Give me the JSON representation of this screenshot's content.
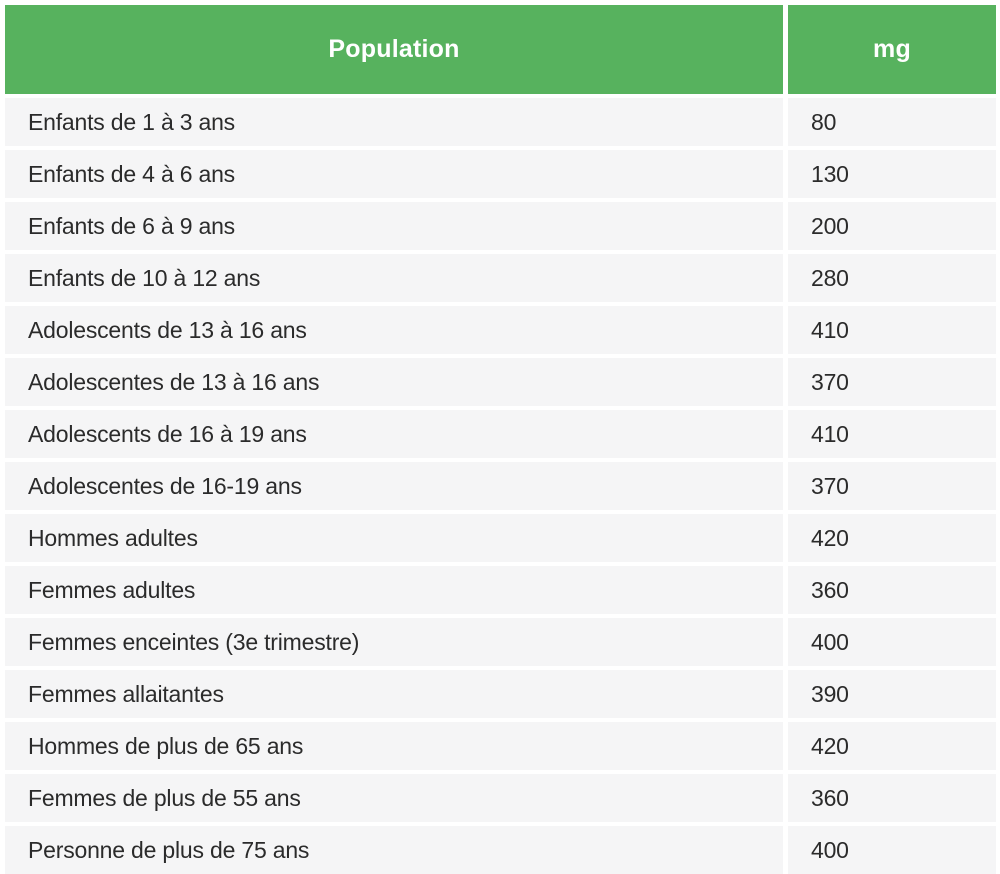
{
  "colors": {
    "header_bg": "#57b25e",
    "header_text": "#ffffff",
    "row_bg": "#f5f5f6",
    "cell_text": "#2b2b2b",
    "separator": "#ffffff"
  },
  "table": {
    "columns": [
      {
        "label": "Population"
      },
      {
        "label": "mg"
      }
    ],
    "rows": [
      {
        "population": "Enfants de 1 à 3 ans",
        "mg": "80"
      },
      {
        "population": "Enfants de 4 à 6 ans",
        "mg": "130"
      },
      {
        "population": "Enfants de 6 à 9 ans",
        "mg": "200"
      },
      {
        "population": "Enfants de 10 à 12 ans",
        "mg": "280"
      },
      {
        "population": "Adolescents de 13 à 16 ans",
        "mg": "410"
      },
      {
        "population": "Adolescentes de 13 à 16 ans",
        "mg": "370"
      },
      {
        "population": "Adolescents de 16 à 19 ans",
        "mg": "410"
      },
      {
        "population": "Adolescentes de 16-19 ans",
        "mg": "370"
      },
      {
        "population": "Hommes adultes",
        "mg": "420"
      },
      {
        "population": "Femmes adultes",
        "mg": "360"
      },
      {
        "population": "Femmes enceintes (3e trimestre)",
        "mg": "400"
      },
      {
        "population": "Femmes allaitantes",
        "mg": "390"
      },
      {
        "population": "Hommes de plus de 65 ans",
        "mg": "420"
      },
      {
        "population": "Femmes de plus de 55 ans",
        "mg": "360"
      },
      {
        "population": "Personne de plus de 75 ans",
        "mg": "400"
      }
    ]
  },
  "chart_data": {
    "type": "table",
    "title": "",
    "columns": [
      "Population",
      "mg"
    ],
    "categories": [
      "Enfants de 1 à 3 ans",
      "Enfants de 4 à 6 ans",
      "Enfants de 6 à 9 ans",
      "Enfants de 10 à 12 ans",
      "Adolescents de 13 à 16 ans",
      "Adolescentes de 13 à 16 ans",
      "Adolescents de 16 à 19 ans",
      "Adolescentes de 16-19 ans",
      "Hommes adultes",
      "Femmes adultes",
      "Femmes enceintes (3e trimestre)",
      "Femmes allaitantes",
      "Hommes de plus de 65 ans",
      "Femmes de plus de 55 ans",
      "Personne de plus de 75 ans"
    ],
    "values": [
      80,
      130,
      200,
      280,
      410,
      370,
      410,
      370,
      420,
      360,
      400,
      390,
      420,
      360,
      400
    ]
  }
}
